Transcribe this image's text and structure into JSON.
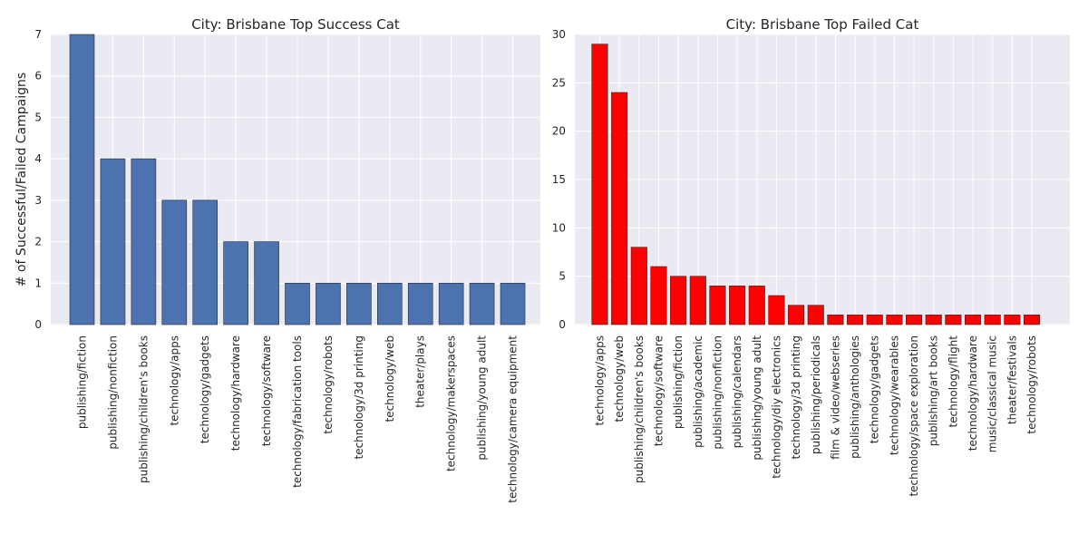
{
  "chart_data": [
    {
      "type": "bar",
      "title": "City: Brisbane Top Success Cat",
      "ylabel": "# of Successful/Failed Campaigns",
      "xlabel": "",
      "ylim": [
        0,
        7
      ],
      "yticks": [
        0,
        1,
        2,
        3,
        4,
        5,
        6,
        7
      ],
      "color": "#4c72b0",
      "grid": true,
      "categories": [
        "publishing/fiction",
        "publishing/nonfiction",
        "publishing/children's books",
        "technology/apps",
        "technology/gadgets",
        "technology/hardware",
        "technology/software",
        "technology/fabrication tools",
        "technology/robots",
        "technology/3d printing",
        "technology/web",
        "theater/plays",
        "technology/makerspaces",
        "publishing/young adult",
        "technology/camera equipment"
      ],
      "values": [
        7,
        4,
        4,
        3,
        3,
        2,
        2,
        1,
        1,
        1,
        1,
        1,
        1,
        1,
        1
      ]
    },
    {
      "type": "bar",
      "title": "City: Brisbane Top Failed Cat",
      "ylabel": "",
      "xlabel": "",
      "ylim": [
        0,
        30
      ],
      "yticks": [
        0,
        5,
        10,
        15,
        20,
        25,
        30
      ],
      "color": "#ff0000",
      "grid": true,
      "categories": [
        "technology/apps",
        "technology/web",
        "publishing/children's books",
        "technology/software",
        "publishing/fiction",
        "publishing/academic",
        "publishing/nonfiction",
        "publishing/calendars",
        "publishing/young adult",
        "technology/diy electronics",
        "technology/3d printing",
        "publishing/periodicals",
        "film & video/webseries",
        "publishing/anthologies",
        "technology/gadgets",
        "technology/wearables",
        "technology/space exploration",
        "publishing/art books",
        "technology/flight",
        "technology/hardware",
        "music/classical music",
        "theater/festivals",
        "technology/robots"
      ],
      "values": [
        29,
        24,
        8,
        6,
        5,
        5,
        4,
        4,
        4,
        3,
        2,
        2,
        1,
        1,
        1,
        1,
        1,
        1,
        1,
        1,
        1,
        1,
        1
      ]
    }
  ]
}
